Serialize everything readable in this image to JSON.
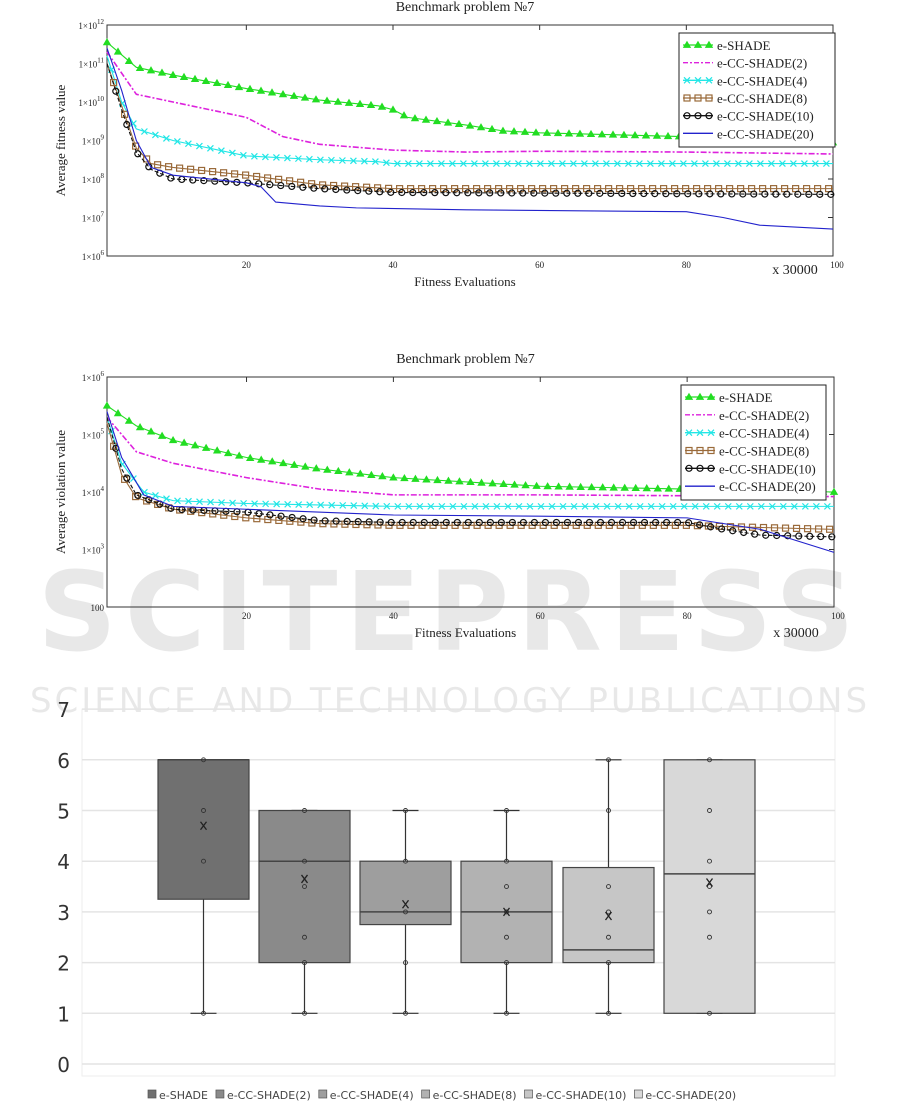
{
  "watermark": {
    "line1": "SCITEPRESS",
    "line2": "SCIENCE AND TECHNOLOGY PUBLICATIONS"
  },
  "chart_data": [
    {
      "type": "line",
      "title": "Benchmark problem №7",
      "xlabel": "Fitness Evaluations",
      "xscale_note": "x 30000",
      "ylabel": "Average fitness value",
      "yscale": "log",
      "xlim": [
        1,
        100
      ],
      "ylim_log10": [
        6,
        12
      ],
      "xticks": [
        "20",
        "40",
        "60",
        "80",
        "100"
      ],
      "yticks": [
        {
          "base": "1×10",
          "exp": "6"
        },
        {
          "base": "1×10",
          "exp": "7"
        },
        {
          "base": "1×10",
          "exp": "8"
        },
        {
          "base": "1×10",
          "exp": "9"
        },
        {
          "base": "1×10",
          "exp": "10"
        },
        {
          "base": "1×10",
          "exp": "11"
        },
        {
          "base": "1×10",
          "exp": "12"
        }
      ],
      "legend_position": "top-right",
      "series": [
        {
          "name": "e-SHADE",
          "color": "#22dd22",
          "marker": "triangle",
          "x": [
            1,
            5,
            10,
            20,
            30,
            38,
            40,
            42,
            50,
            55,
            60,
            80,
            100
          ],
          "log10_y": [
            11.55,
            10.9,
            10.7,
            10.35,
            10.05,
            9.9,
            9.8,
            9.6,
            9.4,
            9.25,
            9.2,
            9.1,
            8.95
          ]
        },
        {
          "name": "e-CC-SHADE(2)",
          "color": "#dd22dd",
          "marker": "dashdot",
          "x": [
            1,
            5,
            10,
            20,
            25,
            30,
            40,
            50,
            60,
            80,
            100
          ],
          "log10_y": [
            11.3,
            10.2,
            10.0,
            9.6,
            9.1,
            8.9,
            8.75,
            8.7,
            8.72,
            8.7,
            8.65
          ]
        },
        {
          "name": "e-CC-SHADE(4)",
          "color": "#22e6e6",
          "marker": "x",
          "x": [
            1,
            3,
            5,
            10,
            20,
            30,
            38,
            40,
            100
          ],
          "log10_y": [
            11.2,
            10.0,
            9.3,
            9.0,
            8.6,
            8.5,
            8.45,
            8.4,
            8.4
          ]
        },
        {
          "name": "e-CC-SHADE(8)",
          "color": "#9a6a3a",
          "marker": "square",
          "x": [
            1,
            3,
            5,
            7,
            10,
            20,
            30,
            40,
            100
          ],
          "log10_y": [
            11.0,
            9.9,
            8.8,
            8.4,
            8.3,
            8.1,
            7.85,
            7.75,
            7.75
          ]
        },
        {
          "name": "e-CC-SHADE(10)",
          "color": "#111111",
          "marker": "circle",
          "x": [
            1,
            3,
            5,
            7,
            10,
            20,
            30,
            40,
            100
          ],
          "log10_y": [
            11.0,
            9.8,
            8.7,
            8.25,
            8.0,
            7.9,
            7.75,
            7.65,
            7.6
          ]
        },
        {
          "name": "e-CC-SHADE(20)",
          "color": "#2222cc",
          "marker": "none",
          "x": [
            1,
            3,
            5,
            7,
            10,
            20,
            22,
            24,
            30,
            35,
            50,
            80,
            85,
            90,
            100
          ],
          "log10_y": [
            11.4,
            10.3,
            9.0,
            8.3,
            8.1,
            7.9,
            7.8,
            7.4,
            7.3,
            7.25,
            7.2,
            7.15,
            7.0,
            6.8,
            6.7
          ]
        }
      ]
    },
    {
      "type": "line",
      "title": "Benchmark problem №7",
      "xlabel": "Fitness Evaluations",
      "xscale_note": "x 30000",
      "ylabel": "Average violation value",
      "yscale": "log",
      "xlim": [
        1,
        100
      ],
      "ylim_log10": [
        2,
        6
      ],
      "xticks": [
        "20",
        "40",
        "60",
        "80",
        "100"
      ],
      "yticks": [
        {
          "base": "100",
          "exp": ""
        },
        {
          "base": "1×10",
          "exp": "3"
        },
        {
          "base": "1×10",
          "exp": "4"
        },
        {
          "base": "1×10",
          "exp": "5"
        },
        {
          "base": "1×10",
          "exp": "6"
        }
      ],
      "legend_position": "top-right",
      "series": [
        {
          "name": "e-SHADE",
          "color": "#22dd22",
          "marker": "triangle",
          "x": [
            1,
            5,
            10,
            20,
            30,
            40,
            60,
            100
          ],
          "log10_y": [
            5.5,
            5.15,
            4.9,
            4.6,
            4.4,
            4.25,
            4.1,
            4.0
          ]
        },
        {
          "name": "e-CC-SHADE(2)",
          "color": "#dd22dd",
          "marker": "dashdot",
          "x": [
            1,
            5,
            10,
            20,
            30,
            40,
            60,
            100
          ],
          "log10_y": [
            5.3,
            4.7,
            4.5,
            4.25,
            4.05,
            3.95,
            3.95,
            3.92
          ]
        },
        {
          "name": "e-CC-SHADE(4)",
          "color": "#22e6e6",
          "marker": "x",
          "x": [
            1,
            3,
            6,
            10,
            20,
            40,
            100
          ],
          "log10_y": [
            5.3,
            4.5,
            4.0,
            3.85,
            3.8,
            3.75,
            3.75
          ]
        },
        {
          "name": "e-CC-SHADE(8)",
          "color": "#9a6a3a",
          "marker": "square",
          "x": [
            1,
            3,
            5,
            10,
            20,
            30,
            40,
            80,
            85,
            100
          ],
          "log10_y": [
            5.2,
            4.3,
            3.9,
            3.7,
            3.55,
            3.45,
            3.42,
            3.42,
            3.4,
            3.35
          ]
        },
        {
          "name": "e-CC-SHADE(10)",
          "color": "#111111",
          "marker": "circle",
          "x": [
            1,
            3,
            5,
            10,
            20,
            30,
            40,
            80,
            85,
            90,
            100
          ],
          "log10_y": [
            5.3,
            4.4,
            3.95,
            3.7,
            3.65,
            3.5,
            3.47,
            3.47,
            3.35,
            3.25,
            3.22
          ]
        },
        {
          "name": "e-CC-SHADE(20)",
          "color": "#2222cc",
          "marker": "none",
          "x": [
            1,
            3,
            6,
            10,
            20,
            40,
            60,
            80,
            90,
            100
          ],
          "log10_y": [
            5.4,
            4.6,
            3.95,
            3.75,
            3.7,
            3.6,
            3.58,
            3.55,
            3.35,
            2.95
          ]
        }
      ]
    },
    {
      "type": "box",
      "title": "",
      "ylim": [
        0,
        7
      ],
      "yticks": [
        "0",
        "1",
        "2",
        "3",
        "4",
        "5",
        "6",
        "7"
      ],
      "legend_position": "bottom",
      "series": [
        {
          "name": "e-SHADE",
          "color": "#707070",
          "min": 1,
          "q1": 3.25,
          "median": 6,
          "q3": 6,
          "max": 6,
          "mean": 4.7,
          "points": [
            1,
            4,
            5,
            6
          ]
        },
        {
          "name": "e-CC-SHADE(2)",
          "color": "#8a8a8a",
          "min": 1,
          "q1": 2,
          "median": 4,
          "q3": 5,
          "max": 5,
          "mean": 3.65,
          "points": [
            1,
            2,
            2.5,
            3.5,
            4,
            5
          ]
        },
        {
          "name": "e-CC-SHADE(4)",
          "color": "#9e9e9e",
          "min": 1,
          "q1": 2.75,
          "median": 3,
          "q3": 4,
          "max": 5,
          "mean": 3.15,
          "points": [
            1,
            2,
            3,
            4,
            5
          ]
        },
        {
          "name": "e-CC-SHADE(8)",
          "color": "#b2b2b2",
          "min": 1,
          "q1": 2,
          "median": 3,
          "q3": 4,
          "max": 5,
          "mean": 3.0,
          "points": [
            1,
            2,
            2.5,
            3,
            3.5,
            4,
            5
          ]
        },
        {
          "name": "e-CC-SHADE(10)",
          "color": "#c6c6c6",
          "min": 1,
          "q1": 2,
          "median": 2.25,
          "q3": 3.875,
          "max": 6,
          "mean": 2.92,
          "points": [
            1,
            2,
            2.5,
            3,
            3.5,
            5,
            6
          ]
        },
        {
          "name": "e-CC-SHADE(20)",
          "color": "#d8d8d8",
          "min": 1,
          "q1": 1,
          "median": 3.75,
          "q3": 6,
          "max": 6,
          "mean": 3.58,
          "points": [
            1,
            2.5,
            3,
            3.5,
            4,
            5,
            6
          ]
        }
      ]
    }
  ]
}
